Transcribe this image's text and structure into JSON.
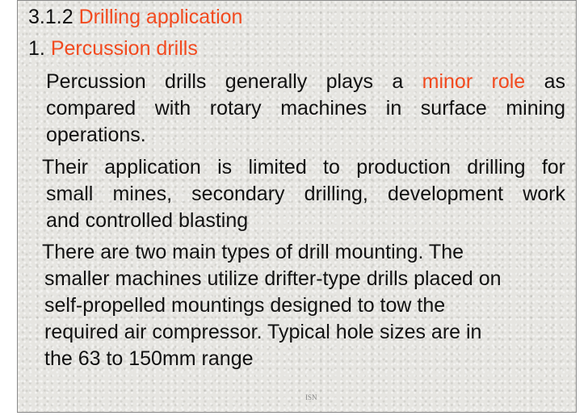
{
  "section": {
    "number": "3.1.2",
    "title": "Drilling application"
  },
  "subsection": {
    "number": "1.",
    "title": "Percussion drills"
  },
  "paragraph1": {
    "line1_before": "Percussion drills generally plays a",
    "line1_highlight": "minor role",
    "line1_after": "as",
    "line2": "compared with rotary machines in surface mining",
    "line3": "operations."
  },
  "paragraph2": {
    "line1": "Their application is limited to production drilling for",
    "line2": "small mines, secondary drilling, development work",
    "line3": "and controlled blasting"
  },
  "paragraph3": {
    "line1": "There are two main types of drill mounting. The",
    "line2": "smaller machines utilize drifter-type drills placed on",
    "line3": "self-propelled mountings designed to tow the",
    "line4": "required air compressor. Typical hole sizes are in",
    "line5": "the 63 to 150mm range"
  },
  "footer": "ISN",
  "colors": {
    "accent": "#f24a1f",
    "text": "#111111",
    "background": "#e6e5e1"
  }
}
